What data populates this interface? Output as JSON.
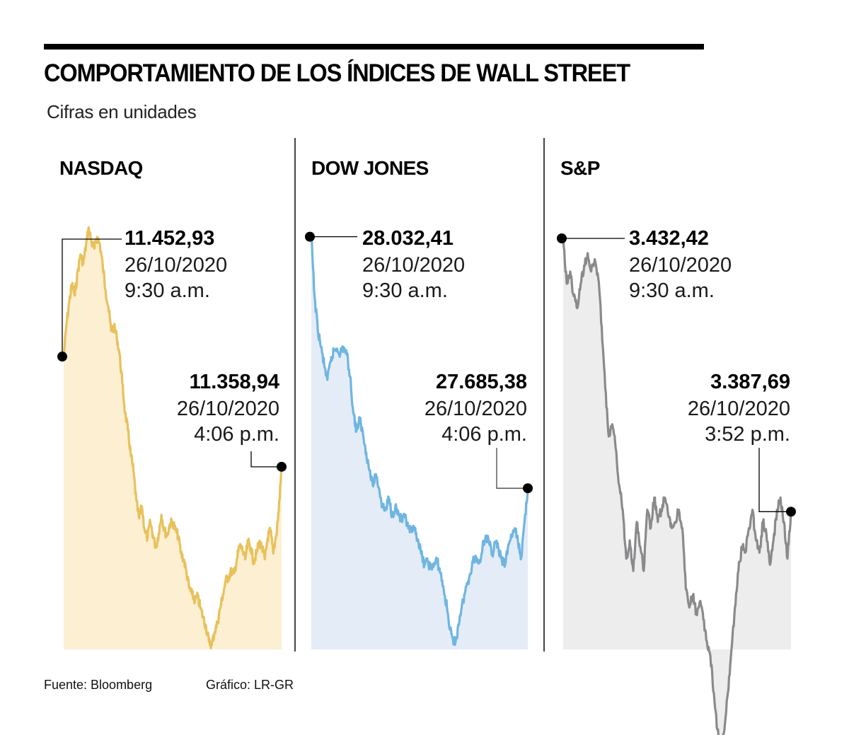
{
  "header": {
    "title": "COMPORTAMIENTO DE LOS ÍNDICES DE WALL STREET",
    "subtitle": "Cifras en unidades"
  },
  "footer": {
    "source": "Fuente: Bloomberg",
    "credit": "Gráfico: LR-GR"
  },
  "colors": {
    "nasdaq_line": "#e8c15c",
    "nasdaq_fill": "#fcefd2",
    "dow_line": "#6fb5e1",
    "dow_fill": "#e4ecf7",
    "sp_line": "#8a8a8c",
    "sp_fill": "#ededed",
    "marker": "#000000"
  },
  "chart_data": [
    {
      "type": "area",
      "title": "NASDAQ",
      "xlabel": "",
      "ylabel": "",
      "date": "26/10/2020",
      "start": {
        "value": 11452.93,
        "label": "11.452,93",
        "date": "26/10/2020",
        "time": "9:30 a.m."
      },
      "end": {
        "value": 11358.94,
        "label": "11.358,94",
        "date": "26/10/2020",
        "time": "4:06 p.m."
      },
      "ylim": [
        11205,
        11570
      ],
      "grid": false,
      "values": [
        11452.93,
        11480,
        11500,
        11515,
        11505,
        11525,
        11540,
        11532,
        11548,
        11563,
        11550,
        11545,
        11555,
        11548,
        11530,
        11510,
        11495,
        11475,
        11478,
        11470,
        11455,
        11430,
        11405,
        11390,
        11370,
        11355,
        11330,
        11315,
        11325,
        11305,
        11298,
        11312,
        11300,
        11290,
        11302,
        11318,
        11305,
        11300,
        11310,
        11312,
        11305,
        11300,
        11285,
        11280,
        11268,
        11255,
        11250,
        11245,
        11248,
        11238,
        11230,
        11222,
        11210,
        11207,
        11218,
        11225,
        11238,
        11250,
        11262,
        11265,
        11270,
        11268,
        11280,
        11292,
        11288,
        11280,
        11295,
        11290,
        11278,
        11285,
        11295,
        11290,
        11280,
        11298,
        11305,
        11285,
        11300,
        11322,
        11358.94
      ]
    },
    {
      "type": "area",
      "title": "DOW JONES",
      "xlabel": "",
      "ylabel": "",
      "date": "26/10/2020",
      "start": {
        "value": 28032.41,
        "label": "28.032,41",
        "date": "26/10/2020",
        "time": "9:30 a.m."
      },
      "end": {
        "value": 27685.38,
        "label": "27.685,38",
        "date": "26/10/2020",
        "time": "4:06 p.m."
      },
      "ylim": [
        27465,
        28035
      ],
      "grid": false,
      "values": [
        28032.41,
        27950,
        27905,
        27880,
        27855,
        27835,
        27860,
        27875,
        27878,
        27872,
        27880,
        27870,
        27840,
        27790,
        27765,
        27780,
        27760,
        27735,
        27710,
        27690,
        27705,
        27685,
        27660,
        27655,
        27672,
        27648,
        27660,
        27650,
        27640,
        27645,
        27630,
        27625,
        27628,
        27615,
        27595,
        27580,
        27585,
        27575,
        27580,
        27585,
        27568,
        27545,
        27520,
        27490,
        27470,
        27480,
        27510,
        27530,
        27550,
        27565,
        27585,
        27590,
        27582,
        27605,
        27620,
        27610,
        27595,
        27612,
        27600,
        27585,
        27580,
        27608,
        27620,
        27630,
        27610,
        27590,
        27640,
        27685.38
      ]
    },
    {
      "type": "area",
      "title": "S&P",
      "xlabel": "",
      "ylabel": "",
      "date": "26/10/2020",
      "start": {
        "value": 3432.42,
        "label": "3.432,42",
        "date": "26/10/2020",
        "time": "9:30 a.m."
      },
      "end": {
        "value": 3387.69,
        "label": "3.387,69",
        "date": "26/10/2020",
        "time": "3:52 p.m."
      },
      "ylim": [
        3367,
        3433
      ],
      "grid": false,
      "values": [
        3432.42,
        3425,
        3427,
        3423,
        3421,
        3425,
        3428,
        3430,
        3427,
        3429,
        3426,
        3418,
        3408,
        3400,
        3402,
        3398,
        3392,
        3388,
        3380,
        3383,
        3378,
        3386,
        3382,
        3378,
        3388,
        3385,
        3390,
        3386,
        3388,
        3390,
        3387,
        3385,
        3386,
        3388,
        3385,
        3375,
        3372,
        3374,
        3371,
        3373,
        3370,
        3366.5,
        3364,
        3358,
        3352,
        3348,
        3352,
        3358,
        3365,
        3372,
        3378,
        3382,
        3381,
        3385,
        3388,
        3383,
        3381,
        3386,
        3384,
        3379,
        3383,
        3388,
        3390,
        3386,
        3380,
        3387.69
      ]
    }
  ]
}
